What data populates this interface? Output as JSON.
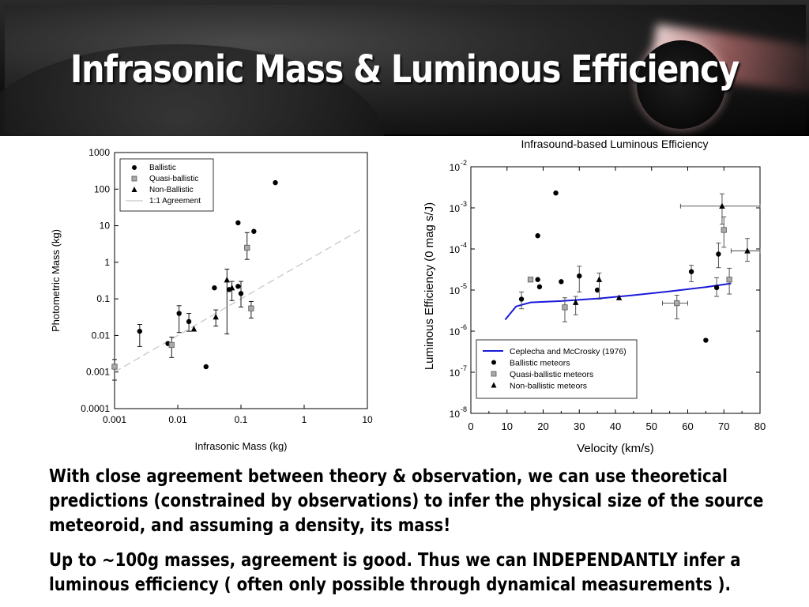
{
  "slide": {
    "title": "Infrasonic Mass & Luminous Efficiency",
    "paragraphs": [
      "With close agreement between theory & observation, we can use theoretical predictions (constrained by observations) to infer the physical size of the source meteoroid, and assuming a density, its mass!",
      "Up to ~100g masses, agreement is good. Thus we can INDEPENDANTLY infer a luminous efficiency ( often only possible through dynamical measurements )."
    ]
  },
  "chart_data": [
    {
      "type": "scatter",
      "title": "",
      "xlabel": "Infrasonic Mass (kg)",
      "ylabel": "Photometric Mass (kg)",
      "xscale": "log",
      "yscale": "log",
      "xlim": [
        0.001,
        10
      ],
      "ylim": [
        0.0001,
        1000
      ],
      "xticks": [
        "0.001",
        "0.01",
        "0.1",
        "1",
        "10"
      ],
      "yticks": [
        "0.0001",
        "0.001",
        "0.01",
        "0.1",
        "1",
        "10",
        "100",
        "1000"
      ],
      "grid": false,
      "legend_position": "top-left",
      "series": [
        {
          "name": "Ballistic",
          "marker": "circle",
          "color": "#000000",
          "points": [
            {
              "x": 0.0025,
              "y": 0.013,
              "yerr": [
                0.005,
                0.02
              ]
            },
            {
              "x": 0.007,
              "y": 0.006
            },
            {
              "x": 0.0105,
              "y": 0.04,
              "yerr": [
                0.012,
                0.065
              ]
            },
            {
              "x": 0.015,
              "y": 0.024,
              "yerr": [
                0.013,
                0.04
              ]
            },
            {
              "x": 0.028,
              "y": 0.0014
            },
            {
              "x": 0.038,
              "y": 0.2
            },
            {
              "x": 0.065,
              "y": 0.18
            },
            {
              "x": 0.09,
              "y": 0.22
            },
            {
              "x": 0.1,
              "y": 0.14,
              "yerr": [
                0.06,
                0.3
              ]
            },
            {
              "x": 0.09,
              "y": 12
            },
            {
              "x": 0.16,
              "y": 7
            },
            {
              "x": 0.35,
              "y": 150
            }
          ]
        },
        {
          "name": "Quasi-ballistic",
          "marker": "square",
          "color": "#aaaaaa",
          "points": [
            {
              "x": 0.001,
              "y": 0.0014,
              "yerr": [
                0.0006,
                0.0022
              ]
            },
            {
              "x": 0.008,
              "y": 0.0055,
              "yerr": [
                0.0025,
                0.009
              ]
            },
            {
              "x": 0.125,
              "y": 2.5,
              "yerr": [
                1.2,
                6.5
              ]
            },
            {
              "x": 0.145,
              "y": 0.055,
              "yerr": [
                0.03,
                0.085
              ]
            }
          ]
        },
        {
          "name": "Non-Ballistic",
          "marker": "triangle",
          "color": "#000000",
          "points": [
            {
              "x": 0.018,
              "y": 0.015
            },
            {
              "x": 0.04,
              "y": 0.032,
              "yerr": [
                0.018,
                0.05
              ]
            },
            {
              "x": 0.06,
              "y": 0.33,
              "yerr": [
                0.011,
                0.65
              ]
            },
            {
              "x": 0.072,
              "y": 0.2,
              "yerr": [
                0.09,
                0.3
              ]
            }
          ]
        },
        {
          "name": "1:1 Agreement",
          "line": "dashed",
          "color": "#c8c8c8",
          "x": [
            0.001,
            8
          ],
          "y": [
            0.001,
            8
          ]
        }
      ]
    },
    {
      "type": "scatter",
      "title": "Infrasound-based Luminous Efficiency",
      "xlabel": "Velocity (km/s)",
      "ylabel": "Luminous Efficiency (0 mag s/J)",
      "xscale": "linear",
      "yscale": "log",
      "xlim": [
        0,
        80
      ],
      "ylim": [
        1e-08,
        0.01
      ],
      "xticks": [
        "0",
        "10",
        "20",
        "30",
        "40",
        "50",
        "60",
        "70",
        "80"
      ],
      "yticks": [
        {
          "base": "10",
          "exp": "-8"
        },
        {
          "base": "10",
          "exp": "-7"
        },
        {
          "base": "10",
          "exp": "-6"
        },
        {
          "base": "10",
          "exp": "-5"
        },
        {
          "base": "10",
          "exp": "-4"
        },
        {
          "base": "10",
          "exp": "-3"
        },
        {
          "base": "10",
          "exp": "-2"
        }
      ],
      "grid": false,
      "legend_position": "bottom-left",
      "series": [
        {
          "name": "Ceplecha and McCrosky (1976)",
          "line": "solid",
          "color": "#1a1adb",
          "x": [
            9.5,
            12.5,
            16.5,
            25,
            35,
            45,
            55,
            65,
            72
          ],
          "y": [
            1.9e-06,
            4e-06,
            5e-06,
            5.4e-06,
            6.2e-06,
            7.5e-06,
            9.3e-06,
            1.18e-05,
            1.45e-05
          ]
        },
        {
          "name": "Ballistic meteors",
          "marker": "circle",
          "color": "#000000",
          "points": [
            {
              "x": 14,
              "y": 6e-06,
              "yerr": [
                3.5e-06,
                9e-06
              ]
            },
            {
              "x": 18.5,
              "y": 1.8e-05
            },
            {
              "x": 18.5,
              "y": 0.00021
            },
            {
              "x": 19,
              "y": 1.2e-05
            },
            {
              "x": 23.5,
              "y": 0.0023
            },
            {
              "x": 25,
              "y": 1.6e-05
            },
            {
              "x": 30,
              "y": 2.2e-05,
              "yerr": [
                9e-06,
                3.8e-05
              ]
            },
            {
              "x": 35,
              "y": 1e-05
            },
            {
              "x": 61,
              "y": 2.8e-05,
              "yerr": [
                1.6e-05,
                4e-05
              ]
            },
            {
              "x": 65,
              "y": 6e-07
            },
            {
              "x": 68,
              "y": 1.15e-05,
              "yerr": [
                7e-06,
                2e-05
              ]
            },
            {
              "x": 68.5,
              "y": 7.5e-05,
              "yerr": [
                3.5e-05,
                0.00014
              ]
            }
          ]
        },
        {
          "name": "Quasi-ballistic meteors",
          "marker": "square",
          "color": "#aaaaaa",
          "points": [
            {
              "x": 16.5,
              "y": 1.8e-05
            },
            {
              "x": 26,
              "y": 3.8e-06,
              "yerr": [
                1.7e-06,
                6.5e-06
              ]
            },
            {
              "x": 57,
              "y": 4.8e-06,
              "yerr": [
                2e-06,
                7.5e-06
              ],
              "xerr": [
                53,
                60
              ]
            },
            {
              "x": 70,
              "y": 0.00029,
              "yerr": [
                0.00011,
                0.0006
              ]
            },
            {
              "x": 71.5,
              "y": 1.8e-05,
              "yerr": [
                8e-06,
                3.4e-05
              ]
            }
          ]
        },
        {
          "name": "Non-ballistic meteors",
          "marker": "triangle",
          "color": "#000000",
          "points": [
            {
              "x": 29,
              "y": 5e-06,
              "yerr": [
                2.5e-06,
                7e-06
              ]
            },
            {
              "x": 35.5,
              "y": 1.8e-05,
              "yerr": [
                6e-06,
                2.6e-05
              ]
            },
            {
              "x": 41,
              "y": 6.5e-06
            },
            {
              "x": 69.5,
              "y": 0.0011,
              "yerr": [
                0.0004,
                0.0022
              ],
              "xerr": [
                58,
                80
              ]
            },
            {
              "x": 76.5,
              "y": 9e-05,
              "yerr": [
                5e-05,
                0.00018
              ],
              "xerr": [
                72,
                80
              ]
            }
          ]
        }
      ]
    }
  ]
}
